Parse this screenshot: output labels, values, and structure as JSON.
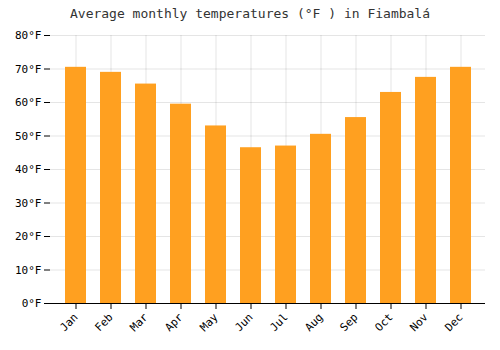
{
  "chart_data": {
    "type": "bar",
    "title": "Average monthly temperatures (°F ) in Fiambalá",
    "categories": [
      "Jan",
      "Feb",
      "Mar",
      "Apr",
      "May",
      "Jun",
      "Jul",
      "Aug",
      "Sep",
      "Oct",
      "Nov",
      "Dec"
    ],
    "values": [
      70.5,
      69,
      65.5,
      59.5,
      53,
      46.5,
      47,
      50.5,
      55.5,
      63,
      67.5,
      70.5
    ],
    "color": "#FFA020",
    "ylim": [
      0,
      80
    ],
    "yticks": [
      {
        "value": 0,
        "label": "0°F"
      },
      {
        "value": 10,
        "label": "10°F"
      },
      {
        "value": 20,
        "label": "20°F"
      },
      {
        "value": 30,
        "label": "30°F"
      },
      {
        "value": 40,
        "label": "40°F"
      },
      {
        "value": 50,
        "label": "50°F"
      },
      {
        "value": 60,
        "label": "60°F"
      },
      {
        "value": 70,
        "label": "70°F"
      },
      {
        "value": 80,
        "label": "80°F"
      }
    ],
    "grid": true
  }
}
